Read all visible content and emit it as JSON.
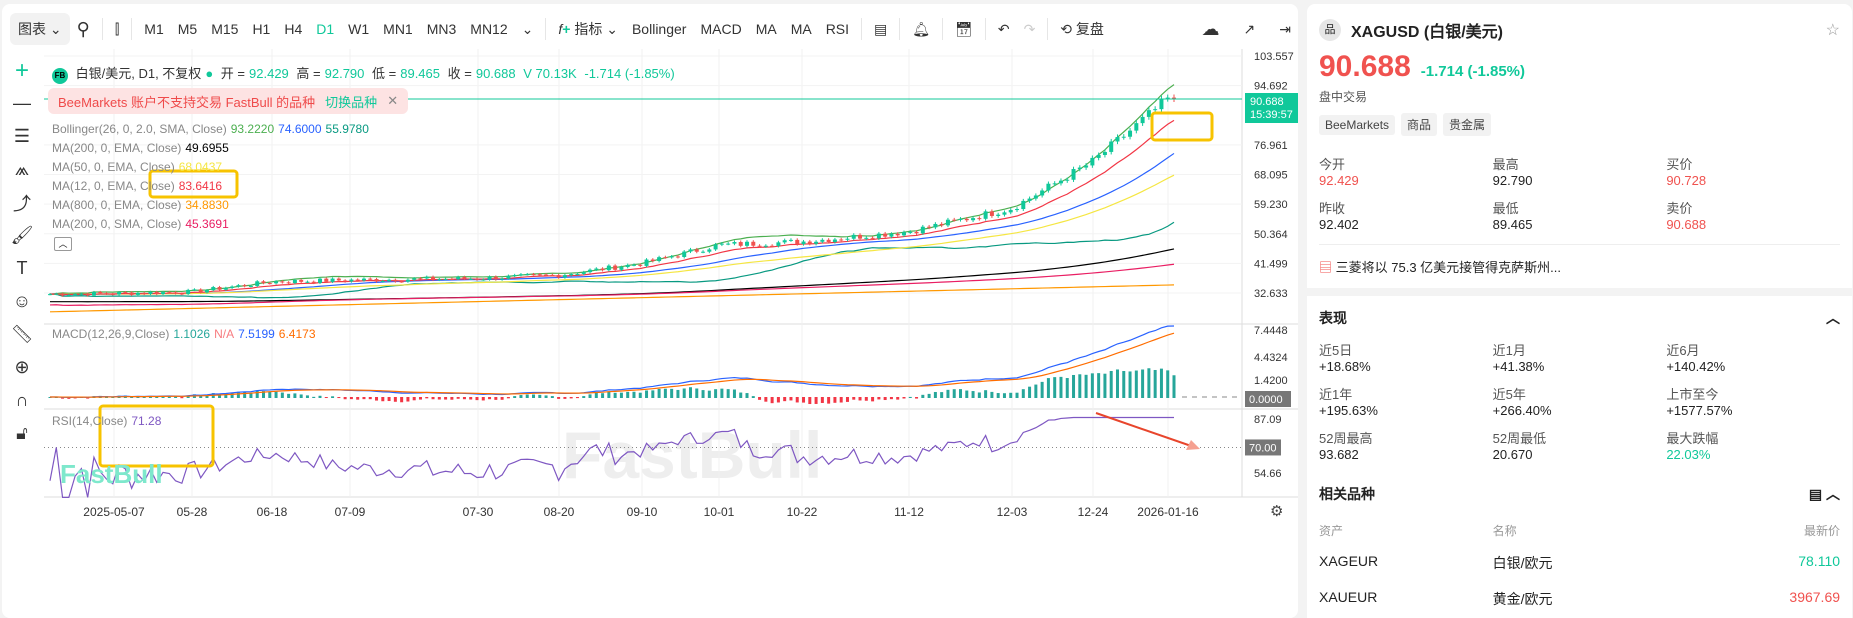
{
  "toolbar": {
    "chart_menu": "图表",
    "timeframes": [
      "M1",
      "M5",
      "M15",
      "H1",
      "H4",
      "D1",
      "W1",
      "MN1",
      "MN3",
      "MN12"
    ],
    "active_timeframe": "D1",
    "indicators_label": "指标",
    "indicator_shortcuts": [
      "Bollinger",
      "MACD",
      "MA",
      "MA",
      "RSI"
    ],
    "replay_label": "复盘"
  },
  "chart_header": {
    "badge": "FB",
    "symbol": "白银/美元, D1, 不复权",
    "open_label": "开 =",
    "open": "92.429",
    "high_label": "高 =",
    "high": "92.790",
    "low_label": "低 =",
    "low": "89.465",
    "close_label": "收 =",
    "close": "90.688",
    "volume": "V 70.13K",
    "change": "-1.714 (-1.85%)"
  },
  "banner": {
    "text": "BeeMarkets 账户不支持交易 FastBull 的品种",
    "link": "切换品种"
  },
  "legends": [
    {
      "name": "Bollinger(26, 0, 2.0, SMA, Close)",
      "values": [
        {
          "v": "93.2220",
          "c": "#4caf50"
        },
        {
          "v": "74.6000",
          "c": "#2962ff"
        },
        {
          "v": "55.9780",
          "c": "#089981"
        }
      ]
    },
    {
      "name": "MA(200, 0, EMA, Close)",
      "values": [
        {
          "v": "49.6955",
          "c": "#000000"
        }
      ]
    },
    {
      "name": "MA(50, 0, EMA, Close)",
      "values": [
        {
          "v": "68.0437",
          "c": "#f5e642"
        }
      ]
    },
    {
      "name": "MA(12, 0, EMA, Close)",
      "values": [
        {
          "v": "83.6416",
          "c": "#f23645"
        }
      ]
    },
    {
      "name": "MA(800, 0, EMA, Close)",
      "values": [
        {
          "v": "34.8830",
          "c": "#ff9800"
        }
      ]
    },
    {
      "name": "MA(200, 0, SMA, Close)",
      "values": [
        {
          "v": "45.3691",
          "c": "#e91e63"
        }
      ]
    }
  ],
  "macd_legend": {
    "name": "MACD(12,26,9,Close)",
    "values": [
      {
        "v": "1.1026",
        "c": "#26a69a"
      },
      {
        "v": "N/A",
        "c": "#f77c80"
      },
      {
        "v": "7.5199",
        "c": "#2962ff"
      },
      {
        "v": "6.4173",
        "c": "#ff6d00"
      }
    ]
  },
  "rsi_legend": {
    "name": "RSI(14,Close)",
    "value": "71.28"
  },
  "watermark": "FastBull",
  "chart_data": {
    "type": "candlestick",
    "price_axis": [
      "103.557",
      "94.692",
      "76.961",
      "68.095",
      "59.230",
      "50.364",
      "41.499",
      "32.633"
    ],
    "macd_axis": [
      "7.4448",
      "4.4324",
      "1.4200"
    ],
    "rsi_axis": [
      "87.09",
      "54.66"
    ],
    "x_ticks": [
      "2025-05-07",
      "05-28",
      "06-18",
      "07-09",
      "07-30",
      "08-20",
      "09-10",
      "10-01",
      "10-22",
      "11-12",
      "12-03",
      "12-24",
      "2026-01-16"
    ],
    "approx_close": [
      32.5,
      33,
      36,
      36.5,
      37,
      38,
      41.5,
      47,
      48,
      51,
      58,
      72,
      90.688
    ],
    "last_price": "90.688",
    "countdown": "15:39:57",
    "macd_zero": "0.0000",
    "rsi_level": "70.00"
  },
  "colors": {
    "up": "#10c89a",
    "down": "#f0524f",
    "accent": "#10c89a"
  },
  "panel": {
    "symbol": "XAGUSD (白银/美元)",
    "price": "90.688",
    "change": "-1.714",
    "change_pct": "(-1.85%)",
    "session": "盘中交易",
    "tags": [
      "BeeMarkets",
      "商品",
      "贵金属"
    ],
    "quote": [
      {
        "l": "今开",
        "v": "92.429",
        "c": "red"
      },
      {
        "l": "最高",
        "v": "92.790",
        "c": ""
      },
      {
        "l": "买价",
        "v": "90.728",
        "c": "red"
      },
      {
        "l": "昨收",
        "v": "92.402",
        "c": ""
      },
      {
        "l": "最低",
        "v": "89.465",
        "c": ""
      },
      {
        "l": "卖价",
        "v": "90.688",
        "c": "red"
      }
    ],
    "news": "三菱将以 75.3 亿美元接管得克萨斯州...",
    "perf_title": "表现",
    "perf": [
      {
        "l": "近5日",
        "v": "+18.68%",
        "c": ""
      },
      {
        "l": "近1月",
        "v": "+41.38%",
        "c": ""
      },
      {
        "l": "近6月",
        "v": "+140.42%",
        "c": ""
      },
      {
        "l": "近1年",
        "v": "+195.63%",
        "c": ""
      },
      {
        "l": "近5年",
        "v": "+266.40%",
        "c": ""
      },
      {
        "l": "上市至今",
        "v": "+1577.57%",
        "c": ""
      },
      {
        "l": "52周最高",
        "v": "93.682",
        "c": ""
      },
      {
        "l": "52周最低",
        "v": "20.670",
        "c": ""
      },
      {
        "l": "最大跌幅",
        "v": "22.03%",
        "c": "green"
      }
    ],
    "related_title": "相关品种",
    "related_headers": [
      "资产",
      "名称",
      "最新价"
    ],
    "related": [
      {
        "a": "XAGEUR",
        "n": "白银/欧元",
        "p": "78.110",
        "c": "green"
      },
      {
        "a": "XAUEUR",
        "n": "黄金/欧元",
        "p": "3967.69",
        "c": "red"
      }
    ]
  }
}
